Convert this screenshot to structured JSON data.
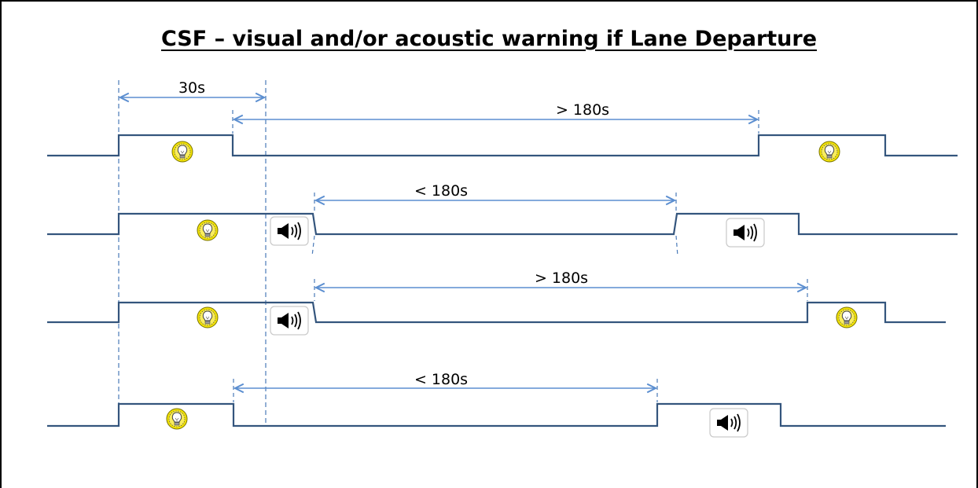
{
  "title": "CSF – visual and/or acoustic warning if Lane Departure",
  "colors": {
    "signal": "#34557d",
    "dimension": "#5b8ed0",
    "bulb": "#f2e200",
    "text": "#000000",
    "frame": "#000000"
  },
  "icons": {
    "visual": "lightbulb-icon",
    "acoustic": "speaker-icon"
  },
  "labels": {
    "d30": "30s",
    "row1_gap": "> 180s",
    "row2_gap": "< 180s",
    "row3_gap": "> 180s",
    "row4_gap": "< 180s"
  }
}
